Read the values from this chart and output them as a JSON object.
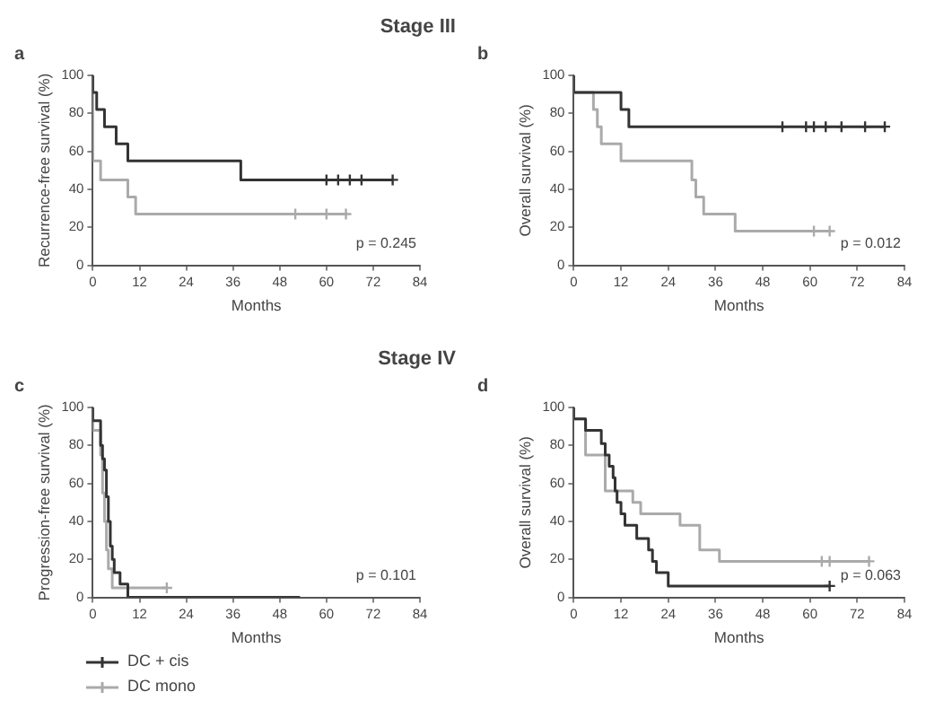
{
  "chart_data": [
    {
      "type": "step",
      "title": "Stage III",
      "annotations": [
        "a",
        "p = 0.245"
      ],
      "xlabel": "Months",
      "ylabel": "Recurrence-free survival (%)",
      "xlim": [
        0,
        84
      ],
      "xticks": [
        0,
        12,
        24,
        36,
        48,
        60,
        72,
        84
      ],
      "ylim": [
        0,
        100
      ],
      "yticks": [
        0,
        20,
        40,
        60,
        80,
        100
      ],
      "series": [
        {
          "color": "#333333",
          "x": [
            0,
            1,
            3,
            6,
            9,
            38,
            46,
            77
          ],
          "values": [
            100,
            91,
            82,
            73,
            64,
            55,
            45,
            45
          ]
        },
        {
          "type": "scatter",
          "marker": "cross",
          "color": "#333333",
          "x": [
            60,
            63,
            66,
            69,
            77
          ],
          "values": [
            45,
            45,
            45,
            45,
            45
          ]
        },
        {
          "color": "#aaaaaa",
          "x": [
            0,
            2,
            9,
            11,
            13,
            65
          ],
          "values": [
            100,
            55,
            45,
            36,
            27,
            27
          ]
        },
        {
          "type": "scatter",
          "marker": "cross",
          "color": "#aaaaaa",
          "x": [
            52,
            60,
            65
          ],
          "values": [
            27,
            27,
            27
          ]
        }
      ]
    },
    {
      "type": "step",
      "annotations": [
        "b",
        "p = 0.012"
      ],
      "xlabel": "Months",
      "ylabel": "Overall survival (%)",
      "xlim": [
        0,
        84
      ],
      "xticks": [
        0,
        12,
        24,
        36,
        48,
        60,
        72,
        84
      ],
      "ylim": [
        0,
        100
      ],
      "yticks": [
        0,
        20,
        40,
        60,
        80,
        100
      ],
      "series": [
        {
          "color": "#333333",
          "x": [
            0,
            12,
            14,
            38,
            79
          ],
          "values": [
            100,
            91,
            82,
            73,
            73
          ]
        },
        {
          "type": "scatter",
          "marker": "cross",
          "color": "#333333",
          "x": [
            53,
            59,
            61,
            64,
            68,
            74,
            79
          ],
          "values": [
            73,
            73,
            73,
            73,
            73,
            73,
            73
          ]
        },
        {
          "color": "#aaaaaa",
          "x": [
            0,
            5,
            6,
            7,
            12,
            30,
            31,
            33,
            41,
            58,
            65
          ],
          "values": [
            100,
            91,
            82,
            73,
            64,
            55,
            45,
            36,
            27,
            18,
            18
          ]
        },
        {
          "type": "scatter",
          "marker": "cross",
          "color": "#aaaaaa",
          "x": [
            61,
            65
          ],
          "values": [
            18,
            18
          ]
        }
      ]
    },
    {
      "type": "step",
      "title": "Stage IV",
      "annotations": [
        "c",
        "p = 0.101"
      ],
      "xlabel": "Months",
      "ylabel": "Progression-free survival (%)",
      "xlim": [
        0,
        84
      ],
      "xticks": [
        0,
        12,
        24,
        36,
        48,
        60,
        72,
        84
      ],
      "ylim": [
        0,
        100
      ],
      "yticks": [
        0,
        20,
        40,
        60,
        80,
        100
      ],
      "legend": "bottom left",
      "series": [
        {
          "name": "DC + cis",
          "color": "#333333",
          "x": [
            0,
            2,
            2.5,
            3,
            3.5,
            4,
            4.5,
            5,
            5.5,
            7,
            9,
            53
          ],
          "values": [
            100,
            93,
            80,
            73,
            67,
            53,
            40,
            27,
            20,
            13,
            7,
            0
          ]
        },
        {
          "name": "DC mono",
          "color": "#aaaaaa",
          "x": [
            0,
            2,
            2.5,
            3,
            3.5,
            4,
            5,
            6,
            19
          ],
          "values": [
            100,
            88,
            75,
            55,
            40,
            25,
            15,
            5,
            5
          ]
        },
        {
          "type": "scatter",
          "marker": "cross",
          "color": "#aaaaaa",
          "x": [
            19
          ],
          "values": [
            5
          ]
        }
      ]
    },
    {
      "type": "step",
      "annotations": [
        "d",
        "p = 0.063"
      ],
      "xlabel": "Months",
      "ylabel": "Overall survival (%)",
      "xlim": [
        0,
        84
      ],
      "xticks": [
        0,
        12,
        24,
        36,
        48,
        60,
        72,
        84
      ],
      "ylim": [
        0,
        100
      ],
      "yticks": [
        0,
        20,
        40,
        60,
        80,
        100
      ],
      "series": [
        {
          "color": "#333333",
          "x": [
            0,
            3,
            7,
            8,
            9,
            10,
            10.5,
            11,
            12,
            13,
            16,
            19,
            20,
            21,
            24,
            26,
            65
          ],
          "values": [
            100,
            94,
            88,
            81,
            75,
            69,
            63,
            56,
            50,
            44,
            38,
            31,
            25,
            19,
            13,
            6,
            6
          ]
        },
        {
          "type": "scatter",
          "marker": "cross",
          "color": "#333333",
          "x": [
            65
          ],
          "values": [
            6
          ]
        },
        {
          "color": "#aaaaaa",
          "x": [
            0,
            3,
            8,
            15,
            17,
            27,
            32,
            37,
            46,
            75
          ],
          "values": [
            100,
            94,
            75,
            56,
            50,
            44,
            38,
            25,
            19,
            19
          ]
        },
        {
          "type": "scatter",
          "marker": "cross",
          "color": "#aaaaaa",
          "x": [
            63,
            65,
            75
          ],
          "values": [
            19,
            19,
            19
          ]
        }
      ]
    }
  ]
}
